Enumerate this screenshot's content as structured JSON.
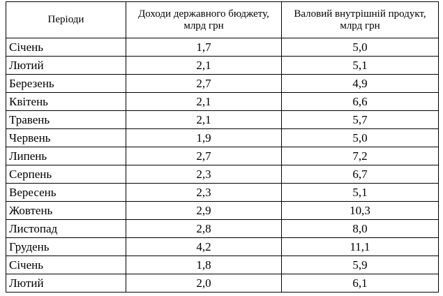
{
  "table": {
    "headers": [
      "Періоди",
      "Доходи державного бюджету, млрд грн",
      "Валовий внутрішній продукт, млрд грн"
    ],
    "rows": [
      {
        "period": "Січень",
        "revenue": "1,7",
        "gdp": "5,0"
      },
      {
        "period": "Лютий",
        "revenue": "2,1",
        "gdp": "5,1"
      },
      {
        "period": "Березень",
        "revenue": "2,7",
        "gdp": "4,9"
      },
      {
        "period": "Квітень",
        "revenue": "2,1",
        "gdp": "6,6"
      },
      {
        "period": "Травень",
        "revenue": "2,1",
        "gdp": "5,7"
      },
      {
        "period": "Червень",
        "revenue": "1,9",
        "gdp": "5,0"
      },
      {
        "period": "Липень",
        "revenue": "2,7",
        "gdp": "7,2"
      },
      {
        "period": "Серпень",
        "revenue": "2,3",
        "gdp": "6,7"
      },
      {
        "period": "Вересень",
        "revenue": "2,3",
        "gdp": "5,1"
      },
      {
        "period": "Жовтень",
        "revenue": "2,9",
        "gdp": "10,3"
      },
      {
        "period": "Листопад",
        "revenue": "2,8",
        "gdp": "8,0"
      },
      {
        "period": "Грудень",
        "revenue": "4,2",
        "gdp": "11,1"
      },
      {
        "period": "Січень",
        "revenue": "1,8",
        "gdp": "5,9"
      },
      {
        "period": "Лютий",
        "revenue": "2,0",
        "gdp": "6,1"
      }
    ]
  }
}
